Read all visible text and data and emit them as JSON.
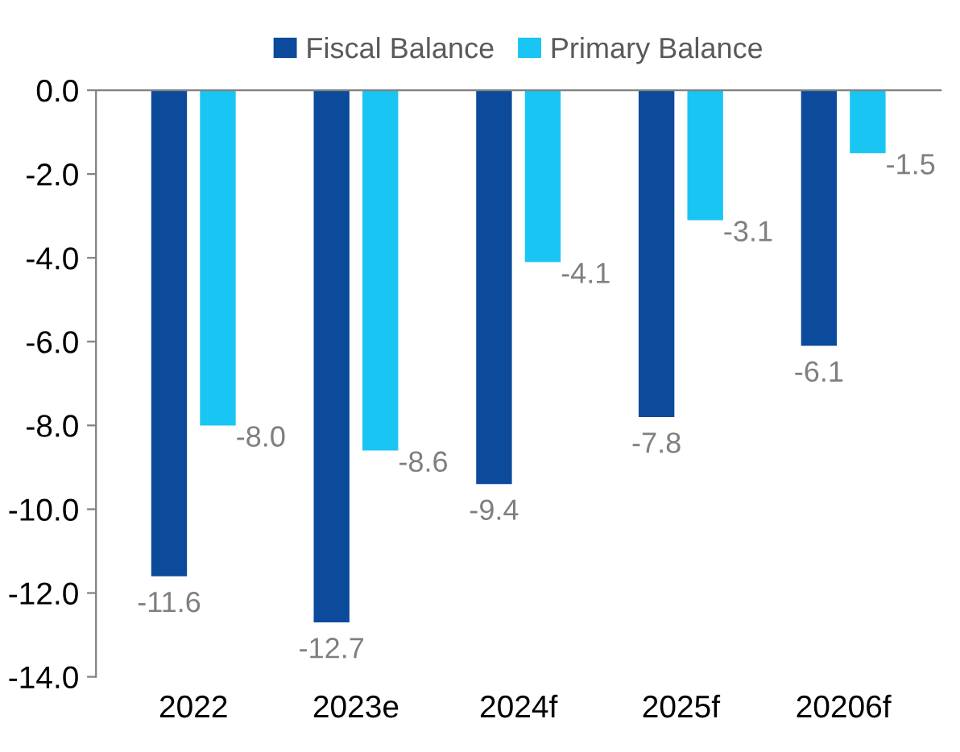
{
  "chart_data": {
    "type": "bar",
    "categories": [
      "2022",
      "2023e",
      "2024f",
      "2025f",
      "20206f"
    ],
    "series": [
      {
        "name": "Fiscal Balance",
        "color": "#0c4a9c",
        "values": [
          -11.6,
          -12.7,
          -9.4,
          -7.8,
          -6.1
        ],
        "value_labels": [
          "-11.6",
          "-12.7",
          "-9.4",
          "-7.8",
          "-6.1"
        ]
      },
      {
        "name": "Primary Balance",
        "color": "#19c5f3",
        "values": [
          -8.0,
          -8.6,
          -4.1,
          -3.1,
          -1.5
        ],
        "value_labels": [
          "-8.0",
          "-8.6",
          "-4.1",
          "-3.1",
          "-1.5"
        ]
      }
    ],
    "ylim": [
      -14,
      0
    ],
    "yticks": [
      {
        "value": 0,
        "label": "0.0"
      },
      {
        "value": -2,
        "label": "-2.0"
      },
      {
        "value": -4,
        "label": "-4.0"
      },
      {
        "value": -6,
        "label": "-6.0"
      },
      {
        "value": -8,
        "label": "-8.0"
      },
      {
        "value": -10,
        "label": "-10.0"
      },
      {
        "value": -12,
        "label": "-12.0"
      },
      {
        "value": -14,
        "label": "-14.0"
      }
    ],
    "legend": "top",
    "grid": false
  }
}
